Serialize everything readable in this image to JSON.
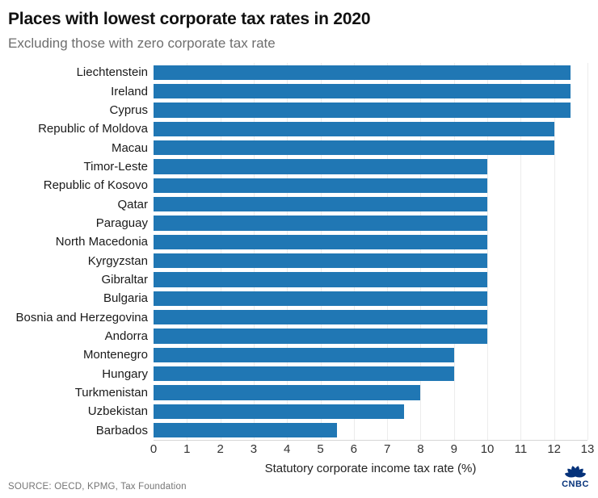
{
  "header": {
    "title": "Places with lowest corporate tax rates in 2020",
    "subtitle": "Excluding those with zero corporate tax rate"
  },
  "chart_data": {
    "type": "bar",
    "orientation": "horizontal",
    "title": "Places with lowest corporate tax rates in 2020",
    "subtitle": "Excluding those with zero corporate tax rate",
    "categories": [
      "Liechtenstein",
      "Ireland",
      "Cyprus",
      "Republic of Moldova",
      "Macau",
      "Timor-Leste",
      "Republic of Kosovo",
      "Qatar",
      "Paraguay",
      "North Macedonia",
      "Kyrgyzstan",
      "Gibraltar",
      "Bulgaria",
      "Bosnia and Herzegovina",
      "Andorra",
      "Montenegro",
      "Hungary",
      "Turkmenistan",
      "Uzbekistan",
      "Barbados"
    ],
    "values": [
      12.5,
      12.5,
      12.5,
      12,
      12,
      10,
      10,
      10,
      10,
      10,
      10,
      10,
      10,
      10,
      10,
      9,
      9,
      8,
      7.5,
      5.5
    ],
    "xlabel": "Statutory corporate income tax rate (%)",
    "ylabel": "",
    "xlim": [
      0,
      13
    ],
    "xticks": [
      0,
      1,
      2,
      3,
      4,
      5,
      6,
      7,
      8,
      9,
      10,
      11,
      12,
      13
    ],
    "grid": true,
    "legend": "none",
    "bar_color": "#2077b4"
  },
  "footer": {
    "source": "SOURCE: OECD, KPMG, Tax Foundation",
    "logo_text": "CNBC"
  },
  "colors": {
    "bar": "#2077b4",
    "title": "#111111",
    "subtitle": "#6e6e6e",
    "grid": "#ececec",
    "logo": "#05327a"
  }
}
